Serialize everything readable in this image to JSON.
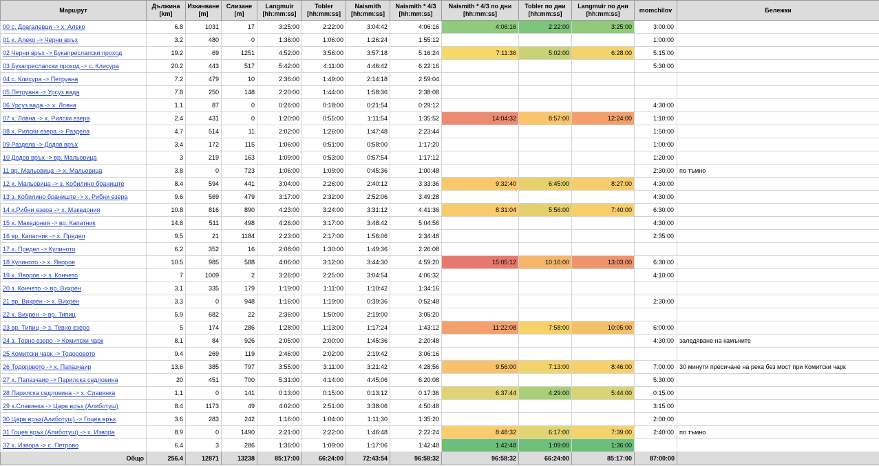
{
  "headers": {
    "route": "Маршрут",
    "length": "Дължина\n[km]",
    "ascent": "Изкачване\n[m]",
    "descent": "Слизане\n[m]",
    "langmuir": "Langmuir\n[hh:mm:ss]",
    "tobler": "Tobler\n[hh:mm:ss]",
    "naismith": "Naismith\n[hh:mm:ss]",
    "naismith43": "Naismith * 4/3\n[hh:mm:ss]",
    "naismith43_days": "Naismith * 4/3 по дни\n[hh:mm:ss]",
    "tobler_days": "Tobler по дни\n[hh:mm:ss]",
    "langmuir_days": "Langmuir по дни\n[hh:mm:ss]",
    "momchilov": "momchilov",
    "notes": "Бележки"
  },
  "rows": [
    [
      "00 с. Драгалевци -> х. Алеко",
      "6.8",
      "1031",
      "17",
      "3:25:00",
      "2:22:00",
      "3:04:42",
      "4:06:16",
      "4:06:16",
      "2:22:00",
      "3:25:00",
      "3:00:00",
      ""
    ],
    [
      "01 х. Алеко -> Черни връх",
      "3.2",
      "480",
      "0",
      "1:36:00",
      "1:06:00",
      "1:26:24",
      "1:55:12",
      "",
      "",
      "",
      "1:00:00",
      ""
    ],
    [
      "02 Черни връх -> Букапреслапски проход",
      "19.2",
      "69",
      "1251",
      "4:52:00",
      "3:56:00",
      "3:57:18",
      "5:16:24",
      "7:11:36",
      "5:02:00",
      "6:28:00",
      "5:15:00",
      ""
    ],
    [
      "03 Букапреслапски проход -> с. Клисура",
      "20.2",
      "443",
      "517",
      "5:42:00",
      "4:11:00",
      "4:46:42",
      "6:22:16",
      "",
      "",
      "",
      "5:30:00",
      ""
    ],
    [
      "04 с. Клисура -> Петруана",
      "7.2",
      "479",
      "10",
      "2:36:00",
      "1:49:00",
      "2:14:18",
      "2:59:04",
      "",
      "",
      "",
      "",
      ""
    ],
    [
      "05 Петруана -> Урсуз вада",
      "7.8",
      "250",
      "148",
      "2:20:00",
      "1:44:00",
      "1:58:36",
      "2:38:08",
      "",
      "",
      "",
      "",
      ""
    ],
    [
      "06 Урсуз вада -> х. Ловна",
      "1.1",
      "87",
      "0",
      "0:26:00",
      "0:18:00",
      "0:21:54",
      "0:29:12",
      "",
      "",
      "",
      "4:30:00",
      ""
    ],
    [
      "07 х. Ловна -> х. Рилски езера",
      "2.4",
      "431",
      "0",
      "1:20:00",
      "0:55:00",
      "1:11:54",
      "1:35:52",
      "14:04:32",
      "8:57:00",
      "12:24:00",
      "1:10:00",
      ""
    ],
    [
      "08 х. Рилски езера -> Раздела",
      "4.7",
      "514",
      "11",
      "2:02:00",
      "1:26:00",
      "1:47:48",
      "2:23:44",
      "",
      "",
      "",
      "1:50:00",
      ""
    ],
    [
      "09 Раздела -> Додов връх",
      "3.4",
      "172",
      "115",
      "1:06:00",
      "0:51:00",
      "0:58:00",
      "1:17:20",
      "",
      "",
      "",
      "1:00:00",
      ""
    ],
    [
      "10 Додов връх -> вр. Мальовица",
      "3",
      "219",
      "163",
      "1:09:00",
      "0:53:00",
      "0:57:54",
      "1:17:12",
      "",
      "",
      "",
      "1:20:00",
      ""
    ],
    [
      "11 вр. Мальовица -> х. Мальовица",
      "3.8",
      "0",
      "723",
      "1:06:00",
      "1:09:00",
      "0:45:36",
      "1:00:48",
      "",
      "",
      "",
      "2:30:00",
      "по тъмно"
    ],
    [
      "12 х. Мальовица -> з. Кобилино браниште",
      "8.4",
      "594",
      "441",
      "3:04:00",
      "2:26:00",
      "2:40:12",
      "3:33:36",
      "9:32:40",
      "6:45:00",
      "8:27:00",
      "4:30:00",
      ""
    ],
    [
      "13 з. Кобилино браниште -> х. Рибни езера",
      "9.6",
      "569",
      "479",
      "3:17:00",
      "2:32:00",
      "2:52:06",
      "3:49:28",
      "",
      "",
      "",
      "4:30:00",
      ""
    ],
    [
      "14 х.Рибни езера -> х. Македония",
      "10.8",
      "816",
      "890",
      "4:23:00",
      "3:24:00",
      "3:31:12",
      "4:41:36",
      "8:31:04",
      "5:56:00",
      "7:40:00",
      "6:30:00",
      ""
    ],
    [
      "15 х. Македония -> вр. Капатник",
      "14.8",
      "511",
      "498",
      "4:26:00",
      "3:17:00",
      "3:48:42",
      "5:04:56",
      "",
      "",
      "",
      "4:30:00",
      ""
    ],
    [
      "16 вр. Капатник -> х. Предел",
      "9.5",
      "21",
      "1184",
      "2:23:00",
      "2:17:00",
      "1:56:06",
      "2:34:48",
      "",
      "",
      "",
      "2:35:00",
      ""
    ],
    [
      "17 х. Предел -> Кулиното",
      "6.2",
      "352",
      "16",
      "2:08:00",
      "1:30:00",
      "1:49:36",
      "2:26:08",
      "",
      "",
      "",
      "",
      ""
    ],
    [
      "18 Кулиното -> х. Яворов",
      "10.5",
      "985",
      "588",
      "4:06:00",
      "3:12:00",
      "3:44:30",
      "4:59:20",
      "15:05:12",
      "10:16:00",
      "13:03:00",
      "6:30:00",
      ""
    ],
    [
      "19 х. Яворов -> з. Кончето",
      "7",
      "1009",
      "2",
      "3:26:00",
      "2:25:00",
      "3:04:54",
      "4:06:32",
      "",
      "",
      "",
      "4:10:00",
      ""
    ],
    [
      "20 з. Кончето -> вр. Вихрен",
      "3.1",
      "335",
      "179",
      "1:19:00",
      "1:11:00",
      "1:10:42",
      "1:34:16",
      "",
      "",
      "",
      "",
      ""
    ],
    [
      "21 вр. Вихрен -> х. Вихрен",
      "3.3",
      "0",
      "948",
      "1:16:00",
      "1:19:00",
      "0:39:36",
      "0:52:48",
      "",
      "",
      "",
      "2:30:00",
      ""
    ],
    [
      "22 х. Вихрен -> вр. Типиц",
      "5.9",
      "682",
      "22",
      "2:36:00",
      "1:50:00",
      "2:19:00",
      "3:05:20",
      "",
      "",
      "",
      "",
      ""
    ],
    [
      "23 вр. Типиц -> з. Тевно езеро",
      "5",
      "174",
      "286",
      "1:28:00",
      "1:13:00",
      "1:17:24",
      "1:43:12",
      "11:22:08",
      "7:58:00",
      "10:05:00",
      "6:00:00",
      ""
    ],
    [
      "24 з. Тевно езеро -> Комитски чарк",
      "8.1",
      "84",
      "926",
      "2:05:00",
      "2:00:00",
      "1:45:36",
      "2:20:48",
      "",
      "",
      "",
      "4:30:00",
      "заледяване на камъните"
    ],
    [
      "25 Комитски чарк -> Тодоровото",
      "9.4",
      "269",
      "119",
      "2:46:00",
      "2:02:00",
      "2:19:42",
      "3:06:16",
      "",
      "",
      "",
      "",
      ""
    ],
    [
      "26 Тодоровото -> х. Папазчаир",
      "13.6",
      "385",
      "797",
      "3:55:00",
      "3:11:00",
      "3:21:42",
      "4:28:56",
      "9:56:00",
      "7:13:00",
      "8:46:00",
      "7:00:00",
      "30 минути пресичане на река без мост при Комитски чарк"
    ],
    [
      "27 х. Папазчаир -> Парилска седловина",
      "20",
      "451",
      "700",
      "5:31:00",
      "4:14:00",
      "4:45:06",
      "6:20:08",
      "",
      "",
      "",
      "5:30:00",
      ""
    ],
    [
      "28 Парилска седловина -> х. Славянка",
      "1.1",
      "0",
      "141",
      "0:13:00",
      "0:15:00",
      "0:13:12",
      "0:17:36",
      "6:37:44",
      "4:29:00",
      "5:44:00",
      "0:15:00",
      ""
    ],
    [
      "29 х.Славянка -> Царв връх (Алиботуш)",
      "8.4",
      "1173",
      "49",
      "4:02:00",
      "2:51:00",
      "3:38:06",
      "4:50:48",
      "",
      "",
      "",
      "3:15:00",
      ""
    ],
    [
      "30 Царв връх(Алиботуш) -> Гоцев връх",
      "3.6",
      "283",
      "242",
      "1:16:00",
      "1:04:00",
      "1:11:30",
      "1:35:20",
      "",
      "",
      "",
      "2:00:00",
      ""
    ],
    [
      "31 Гоцев връх (Алиботуш) -> х. Извора",
      "8.9",
      "0",
      "1490",
      "2:21:00",
      "2:22:00",
      "1:46:48",
      "2:22:24",
      "8:48:32",
      "6:17:00",
      "7:39:00",
      "2:40:00",
      "по тъмно"
    ],
    [
      "32 х. Извора -> с. Петрово",
      "6.4",
      "3",
      "286",
      "1:36:00",
      "1:09:00",
      "1:17:06",
      "1:42:48",
      "1:42:48",
      "1:09:00",
      "1:36:00",
      "",
      ""
    ]
  ],
  "total": [
    "Общо",
    "256.4",
    "12871",
    "13238",
    "85:17:00",
    "66:24:00",
    "72:43:54",
    "96:58:32",
    "96:58:32",
    "66:24:00",
    "85:17:00",
    "87:00:00",
    ""
  ],
  "day_colors": {
    "0": [
      "#8ecb7c",
      "#7dc57a",
      "#92c97b"
    ],
    "2": [
      "#f6d86a",
      "#c9d374",
      "#f3d46c"
    ],
    "7": [
      "#ec8a72",
      "#f9c46c",
      "#f1a06c"
    ],
    "12": [
      "#f9c86c",
      "#e7d06c",
      "#f7cc6c"
    ],
    "14": [
      "#f9cb6c",
      "#e5d06d",
      "#f8cd6c"
    ],
    "18": [
      "#e8796f",
      "#f5b56b",
      "#ef956d"
    ],
    "23": [
      "#f2a06c",
      "#f7d26c",
      "#f5c06c"
    ],
    "26": [
      "#f7c26c",
      "#f3d46c",
      "#f7cf6c"
    ],
    "28": [
      "#dfd574",
      "#a8cf77",
      "#d8d474"
    ],
    "31": [
      "#f9cc6c",
      "#e2d470",
      "#f4d36c"
    ],
    "32": [
      "#6cbf7a",
      "#6ec07a",
      "#6bbf7a"
    ]
  }
}
